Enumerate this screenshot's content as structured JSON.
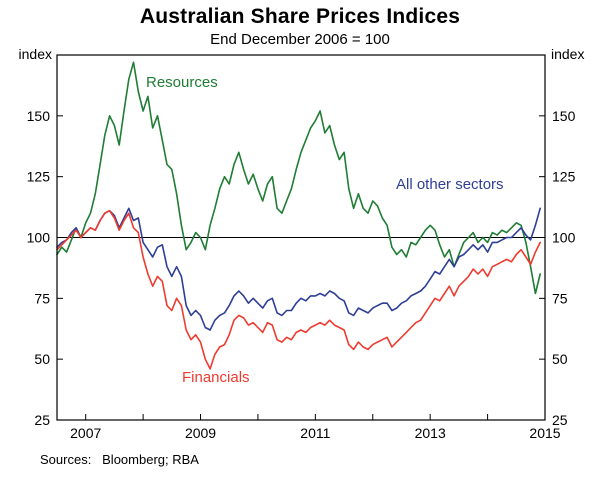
{
  "header": {
    "title": "Australian Share Prices Indices",
    "subtitle": "End December 2006 = 100"
  },
  "axis": {
    "unit_label_left": "index",
    "unit_label_right": "index"
  },
  "footer": {
    "sources": "Sources:   Bloomberg; RBA"
  },
  "chart_data": {
    "type": "line",
    "title": "Australian Share Prices Indices",
    "subtitle": "End December 2006 = 100",
    "xlabel": "",
    "ylabel": "index",
    "xlim": [
      2006.5,
      2015.0
    ],
    "ylim": [
      25,
      175
    ],
    "yticks": [
      25,
      50,
      75,
      100,
      125,
      150
    ],
    "xticks": [
      2007,
      2008,
      2009,
      2010,
      2011,
      2012,
      2013,
      2014
    ],
    "xtick_labels": [
      2007,
      2009,
      2011,
      2013,
      2015
    ],
    "reference_line": 100,
    "grid": false,
    "legend_position": "inline-annotations",
    "x_start": 2006.5,
    "x_step_years": 0.0833333,
    "series": [
      {
        "name": "Resources",
        "color": "#1f7d34",
        "values": [
          93,
          96,
          94,
          99,
          104,
          100,
          106,
          110,
          118,
          130,
          142,
          150,
          146,
          138,
          152,
          165,
          172,
          160,
          152,
          158,
          145,
          150,
          140,
          130,
          128,
          118,
          105,
          95,
          98,
          102,
          100,
          95,
          105,
          112,
          120,
          125,
          122,
          130,
          135,
          128,
          122,
          126,
          120,
          115,
          122,
          125,
          112,
          110,
          115,
          120,
          128,
          135,
          140,
          145,
          148,
          152,
          143,
          146,
          138,
          132,
          135,
          120,
          112,
          118,
          112,
          110,
          115,
          113,
          108,
          105,
          96,
          93,
          95,
          92,
          98,
          97,
          100,
          103,
          105,
          103,
          97,
          92,
          95,
          88,
          93,
          98,
          100,
          102,
          98,
          100,
          98,
          102,
          101,
          103,
          102,
          104,
          106,
          105,
          98,
          88,
          77,
          85
        ]
      },
      {
        "name": "All other sectors",
        "color": "#2e3f95",
        "values": [
          96,
          98,
          99,
          102,
          104,
          100,
          102,
          104,
          103,
          107,
          110,
          111,
          109,
          104,
          108,
          112,
          107,
          108,
          98,
          95,
          92,
          96,
          97,
          88,
          84,
          88,
          84,
          72,
          68,
          70,
          68,
          63,
          62,
          66,
          68,
          69,
          72,
          76,
          78,
          76,
          73,
          75,
          73,
          71,
          74,
          75,
          69,
          68,
          70,
          70,
          73,
          75,
          74,
          76,
          76,
          77,
          76,
          78,
          77,
          75,
          74,
          69,
          68,
          71,
          70,
          69,
          71,
          72,
          73,
          73,
          70,
          71,
          73,
          74,
          76,
          77,
          78,
          80,
          83,
          86,
          85,
          88,
          91,
          88,
          92,
          93,
          95,
          97,
          95,
          97,
          94,
          98,
          98,
          99,
          100,
          100,
          102,
          104,
          101,
          99,
          105,
          112
        ]
      },
      {
        "name": "Financials",
        "color": "#ef3b2f",
        "values": [
          95,
          97,
          99,
          101,
          103,
          100,
          102,
          104,
          103,
          107,
          110,
          111,
          108,
          103,
          107,
          110,
          104,
          102,
          92,
          85,
          80,
          84,
          82,
          72,
          70,
          75,
          72,
          62,
          58,
          60,
          57,
          50,
          46,
          52,
          55,
          56,
          60,
          66,
          68,
          67,
          64,
          65,
          63,
          61,
          65,
          64,
          58,
          57,
          59,
          58,
          61,
          62,
          61,
          63,
          64,
          65,
          64,
          66,
          64,
          63,
          62,
          56,
          54,
          57,
          55,
          54,
          56,
          57,
          58,
          59,
          55,
          57,
          59,
          61,
          63,
          65,
          66,
          69,
          72,
          75,
          74,
          77,
          80,
          76,
          80,
          82,
          84,
          87,
          85,
          87,
          84,
          88,
          89,
          90,
          91,
          90,
          93,
          95,
          92,
          89,
          94,
          98
        ]
      }
    ]
  }
}
